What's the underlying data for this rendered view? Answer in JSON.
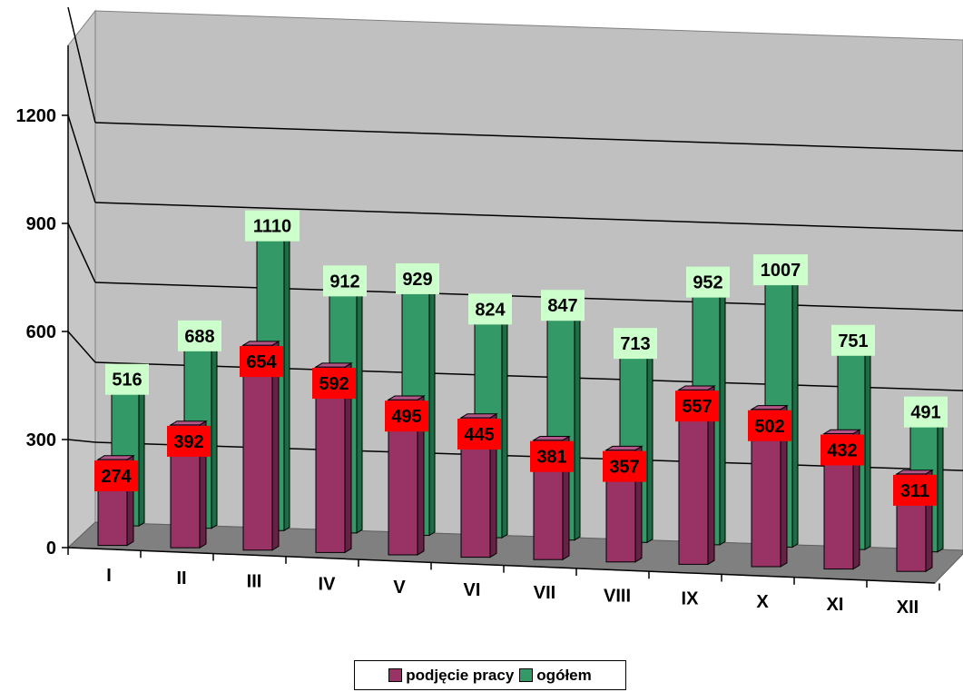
{
  "chart_data": {
    "type": "bar",
    "categories": [
      "I",
      "II",
      "III",
      "IV",
      "V",
      "VI",
      "VII",
      "VIII",
      "IX",
      "X",
      "XI",
      "XII"
    ],
    "series": [
      {
        "name": "podjęcie pracy",
        "color": "#993366",
        "label_bg": "#ff0000",
        "values": [
          274,
          392,
          654,
          592,
          495,
          445,
          381,
          357,
          557,
          502,
          432,
          311
        ]
      },
      {
        "name": "ogółem",
        "color": "#339966",
        "label_bg": "#ccffcc",
        "values": [
          516,
          688,
          1110,
          912,
          929,
          824,
          847,
          713,
          952,
          1007,
          751,
          491
        ]
      }
    ],
    "y_ticks": [
      "0",
      "300",
      "600",
      "900",
      "1200"
    ],
    "ylim": [
      0,
      1200
    ],
    "title": "",
    "xlabel": "",
    "ylabel": "",
    "grid": true,
    "style": "3d",
    "legend_position": "bottom"
  }
}
